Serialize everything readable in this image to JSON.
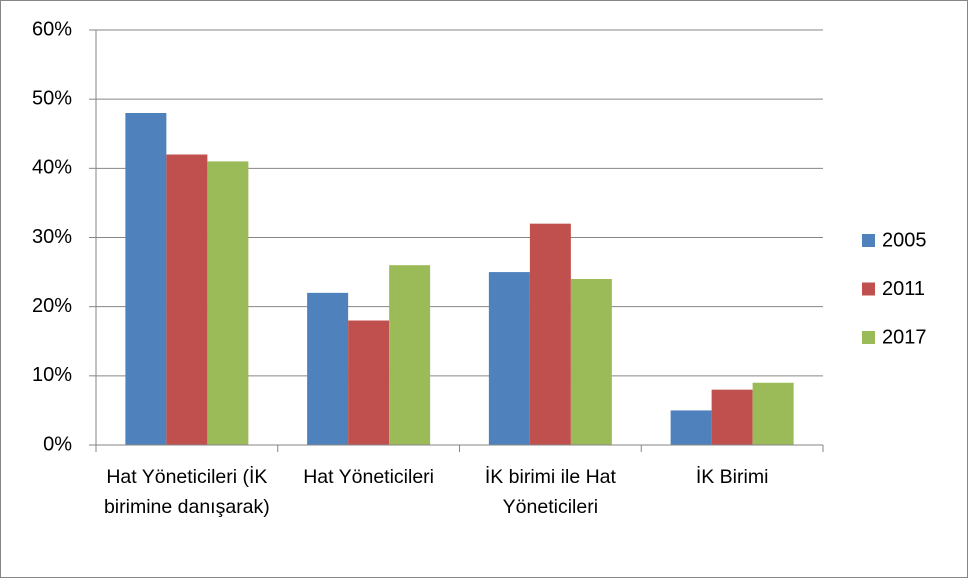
{
  "chart_data": {
    "type": "bar",
    "categories": [
      "Hat Yöneticileri (İK birimine danışarak)",
      "Hat Yöneticileri",
      "İK birimi ile Hat Yöneticileri",
      "İK Birimi"
    ],
    "series": [
      {
        "name": "2005",
        "color": "#4f81bd",
        "values": [
          48,
          22,
          25,
          5
        ]
      },
      {
        "name": "2011",
        "color": "#c0504d",
        "values": [
          42,
          18,
          32,
          8
        ]
      },
      {
        "name": "2017",
        "color": "#9bbb59",
        "values": [
          41,
          26,
          24,
          9
        ]
      }
    ],
    "ylim": [
      0,
      60
    ],
    "yticks": [
      {
        "value": 0,
        "label": "0%"
      },
      {
        "value": 10,
        "label": "10%"
      },
      {
        "value": 20,
        "label": "20%"
      },
      {
        "value": 30,
        "label": "30%"
      },
      {
        "value": 40,
        "label": "40%"
      },
      {
        "value": 50,
        "label": "50%"
      },
      {
        "value": 60,
        "label": "60%"
      }
    ],
    "grid": true,
    "legend": "right"
  }
}
